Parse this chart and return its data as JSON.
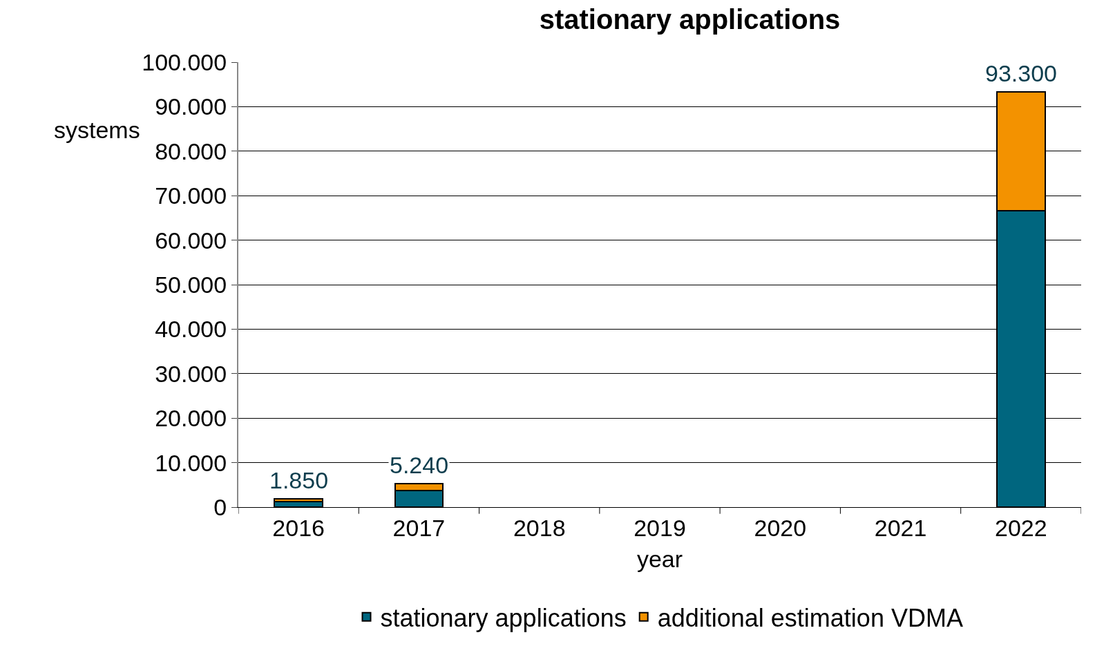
{
  "chart_data": {
    "type": "bar",
    "title": "stationary applications",
    "xlabel": "year",
    "ylabel": "systems",
    "categories": [
      "2016",
      "2017",
      "2018",
      "2019",
      "2020",
      "2021",
      "2022"
    ],
    "series": [
      {
        "name": "stationary applications",
        "color": "#00667f",
        "values": [
          1300,
          3700,
          null,
          null,
          null,
          null,
          66600
        ]
      },
      {
        "name": "additional estimation VDMA",
        "color": "#f39200",
        "values": [
          550,
          1540,
          null,
          null,
          null,
          null,
          26700
        ]
      }
    ],
    "stacked": true,
    "totals": [
      "1.850",
      "5.240",
      null,
      null,
      null,
      null,
      "93.300"
    ],
    "ylim": [
      0,
      100000
    ],
    "yticks": [
      {
        "value": 0,
        "label": "0"
      },
      {
        "value": 10000,
        "label": "10.000"
      },
      {
        "value": 20000,
        "label": "20.000"
      },
      {
        "value": 30000,
        "label": "30.000"
      },
      {
        "value": 40000,
        "label": "40.000"
      },
      {
        "value": 50000,
        "label": "50.000"
      },
      {
        "value": 60000,
        "label": "60.000"
      },
      {
        "value": 70000,
        "label": "70.000"
      },
      {
        "value": 80000,
        "label": "80.000"
      },
      {
        "value": 90000,
        "label": "90.000"
      },
      {
        "value": 100000,
        "label": "100.000"
      }
    ],
    "grid": "y",
    "legend": "bottom"
  }
}
